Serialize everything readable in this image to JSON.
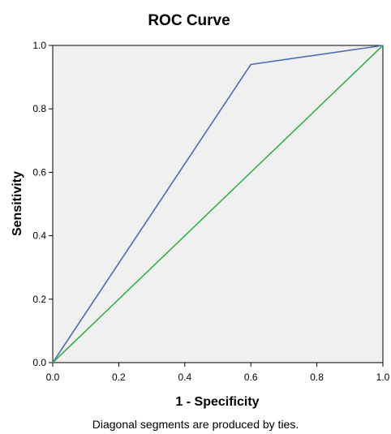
{
  "chart_data": {
    "type": "line",
    "title": "ROC Curve",
    "xlabel": "1 - Specificity",
    "ylabel": "Sensitivity",
    "xlim": [
      0,
      1
    ],
    "ylim": [
      0,
      1
    ],
    "x_ticks": [
      "0.0",
      "0.2",
      "0.4",
      "0.6",
      "0.8",
      "1.0"
    ],
    "y_ticks": [
      "0.0",
      "0.2",
      "0.4",
      "0.6",
      "0.8",
      "1.0"
    ],
    "grid": false,
    "plot_background": "#f0f0f0",
    "series": [
      {
        "color": "#4f6bb6",
        "points": [
          [
            0.0,
            0.0
          ],
          [
            0.6,
            0.94
          ],
          [
            1.0,
            1.0
          ]
        ]
      },
      {
        "color": "#33b34a",
        "points": [
          [
            0.0,
            0.0
          ],
          [
            1.0,
            1.0
          ]
        ]
      }
    ],
    "footnote": "Diagonal segments are produced by ties."
  }
}
